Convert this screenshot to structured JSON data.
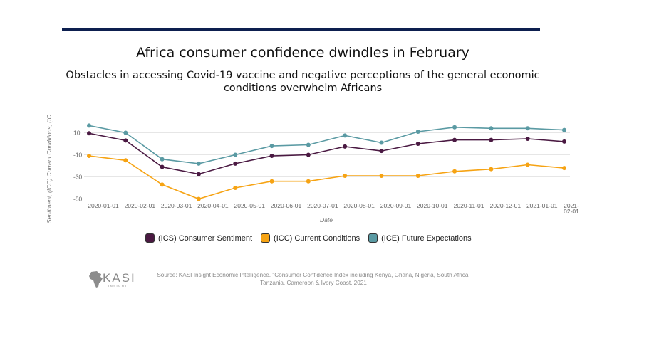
{
  "title": "Africa consumer confidence dwindles in February",
  "subtitle": "Obstacles in accessing Covid-19 vaccine and negative perceptions of the general economic conditions overwhelm Africans",
  "source": "Source: KASI Insight Economic Intelligence. \"Consumer Confidence Index including Kenya, Ghana, Nigeria, South Africa, Tanzania, Cameroon & Ivory Coast, 2021",
  "logo": {
    "text": "KASI",
    "subtext": "INSIGHT"
  },
  "chart_data": {
    "type": "line",
    "xlabel": "Date",
    "ylabel": "Sentiment, (ICC) Current Conditions, (IC",
    "categories": [
      "2020-01-01",
      "2020-02-01",
      "2020-03-01",
      "2020-04-01",
      "2020-05-01",
      "2020-06-01",
      "2020-07-01",
      "2020-08-01",
      "2020-09-01",
      "2020-10-01",
      "2020-11-01",
      "2020-12-01",
      "2021-01-01",
      "2021-02-01"
    ],
    "yticks": [
      10,
      -10,
      -30,
      -50
    ],
    "ylim": [
      -50,
      17
    ],
    "grid": true,
    "legend_position": "bottom",
    "series": [
      {
        "name": "(ICS) Consumer Sentiment",
        "color": "#4a1942",
        "values": [
          9.5,
          3,
          -21,
          -27.5,
          -18,
          -11,
          -10,
          -2.5,
          -6.5,
          0,
          3.5,
          3.5,
          4.5,
          2
        ]
      },
      {
        "name": "(ICC) Current Conditions",
        "color": "#f6a313",
        "values": [
          -11,
          -15,
          -37,
          -50,
          -40,
          -34,
          -34,
          -29,
          -29,
          -29,
          -25,
          -23,
          -19,
          -22
        ]
      },
      {
        "name": "(ICE) Future Expectations",
        "color": "#5a9aa3",
        "values": [
          16.5,
          10,
          -14,
          -18,
          -10,
          -2,
          -1,
          7.5,
          1,
          11,
          15,
          14,
          14,
          12.5
        ]
      }
    ]
  }
}
